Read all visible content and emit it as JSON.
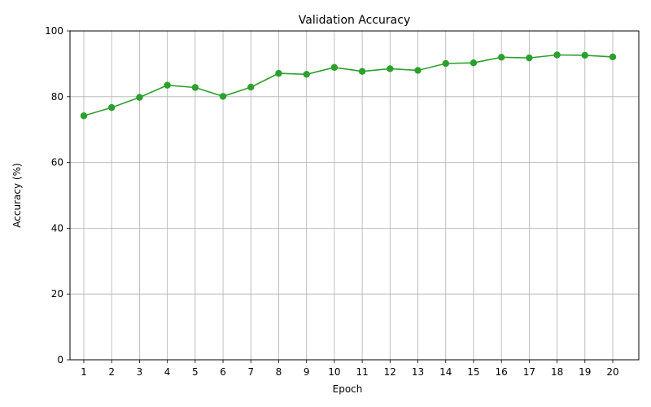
{
  "chart_data": {
    "type": "line",
    "title": "Validation Accuracy",
    "xlabel": "Epoch",
    "ylabel": "Accuracy (%)",
    "x": [
      1,
      2,
      3,
      4,
      5,
      6,
      7,
      8,
      9,
      10,
      11,
      12,
      13,
      14,
      15,
      16,
      17,
      18,
      19,
      20
    ],
    "series": [
      {
        "values": [
          74.2,
          76.7,
          79.8,
          83.5,
          82.8,
          80.1,
          82.9,
          87.1,
          86.8,
          88.9,
          87.7,
          88.5,
          88.0,
          90.1,
          90.3,
          92.0,
          91.8,
          92.7,
          92.6,
          92.1
        ],
        "color": "#2ca02c",
        "marker": "circle"
      }
    ],
    "ylim": [
      0,
      100
    ],
    "yticks": [
      0,
      20,
      40,
      60,
      80,
      100
    ],
    "grid": true
  }
}
